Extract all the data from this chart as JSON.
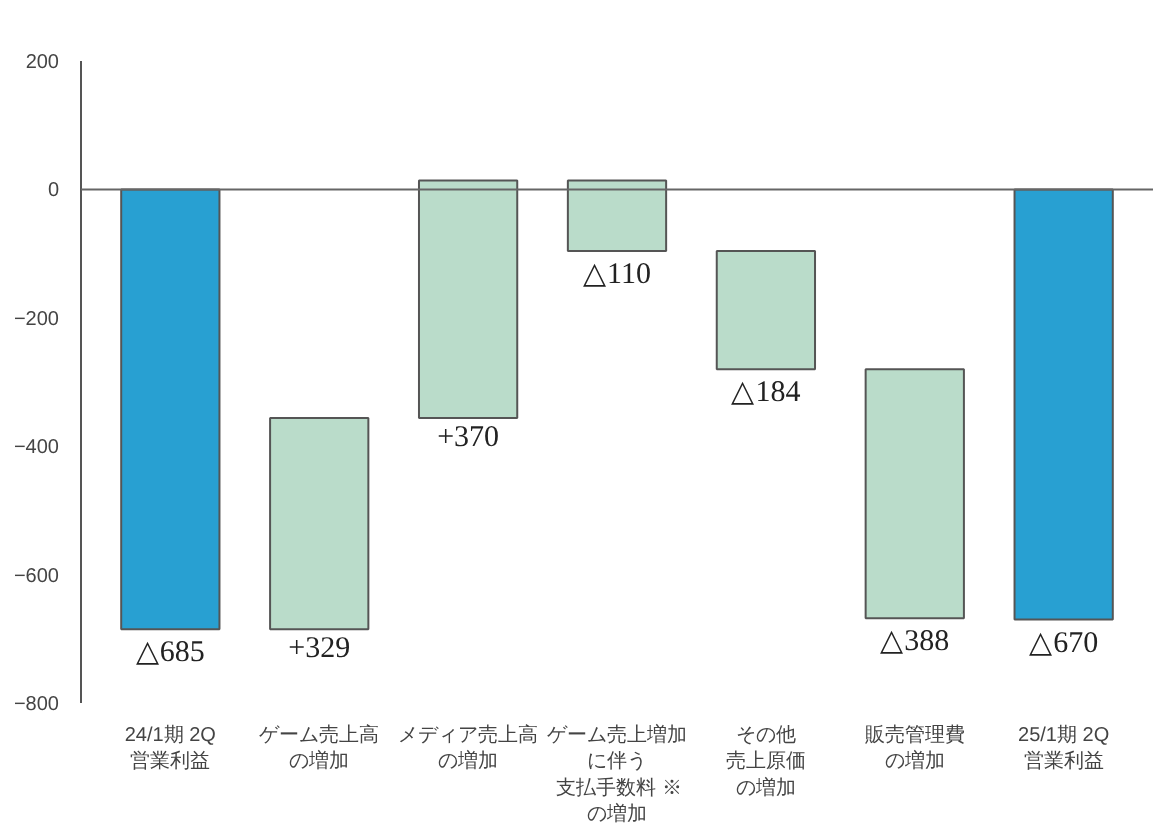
{
  "chart_data": {
    "type": "bar",
    "categories": [
      "24/1期 2Q営業利益",
      "ゲーム売上高の増加",
      "メディア売上高の増加",
      "ゲーム売上増加に伴う支払手数料 ※の増加",
      "その他売上原価の増加",
      "販売管理費の増加",
      "25/1期 2Q営業利益"
    ],
    "values": [
      -685,
      329,
      370,
      -110,
      -184,
      -388,
      -670
    ],
    "base": [
      0,
      -685,
      -356,
      14,
      -96,
      -280,
      0
    ],
    "colors": [
      "#28a0d2",
      "#badcca",
      "#badcca",
      "#badcca",
      "#badcca",
      "#badcca",
      "#28a0d2"
    ],
    "value_labels": [
      "△685",
      "+329",
      "+370",
      "△110",
      "△184",
      "△388",
      "△670"
    ],
    "ylim": [
      -800,
      200
    ],
    "yticks": [
      -800,
      -600,
      -400,
      -200,
      0,
      200
    ],
    "ref_lines": [
      {
        "axis": "y",
        "value": 0,
        "color": "#666666"
      }
    ],
    "grid": false
  }
}
